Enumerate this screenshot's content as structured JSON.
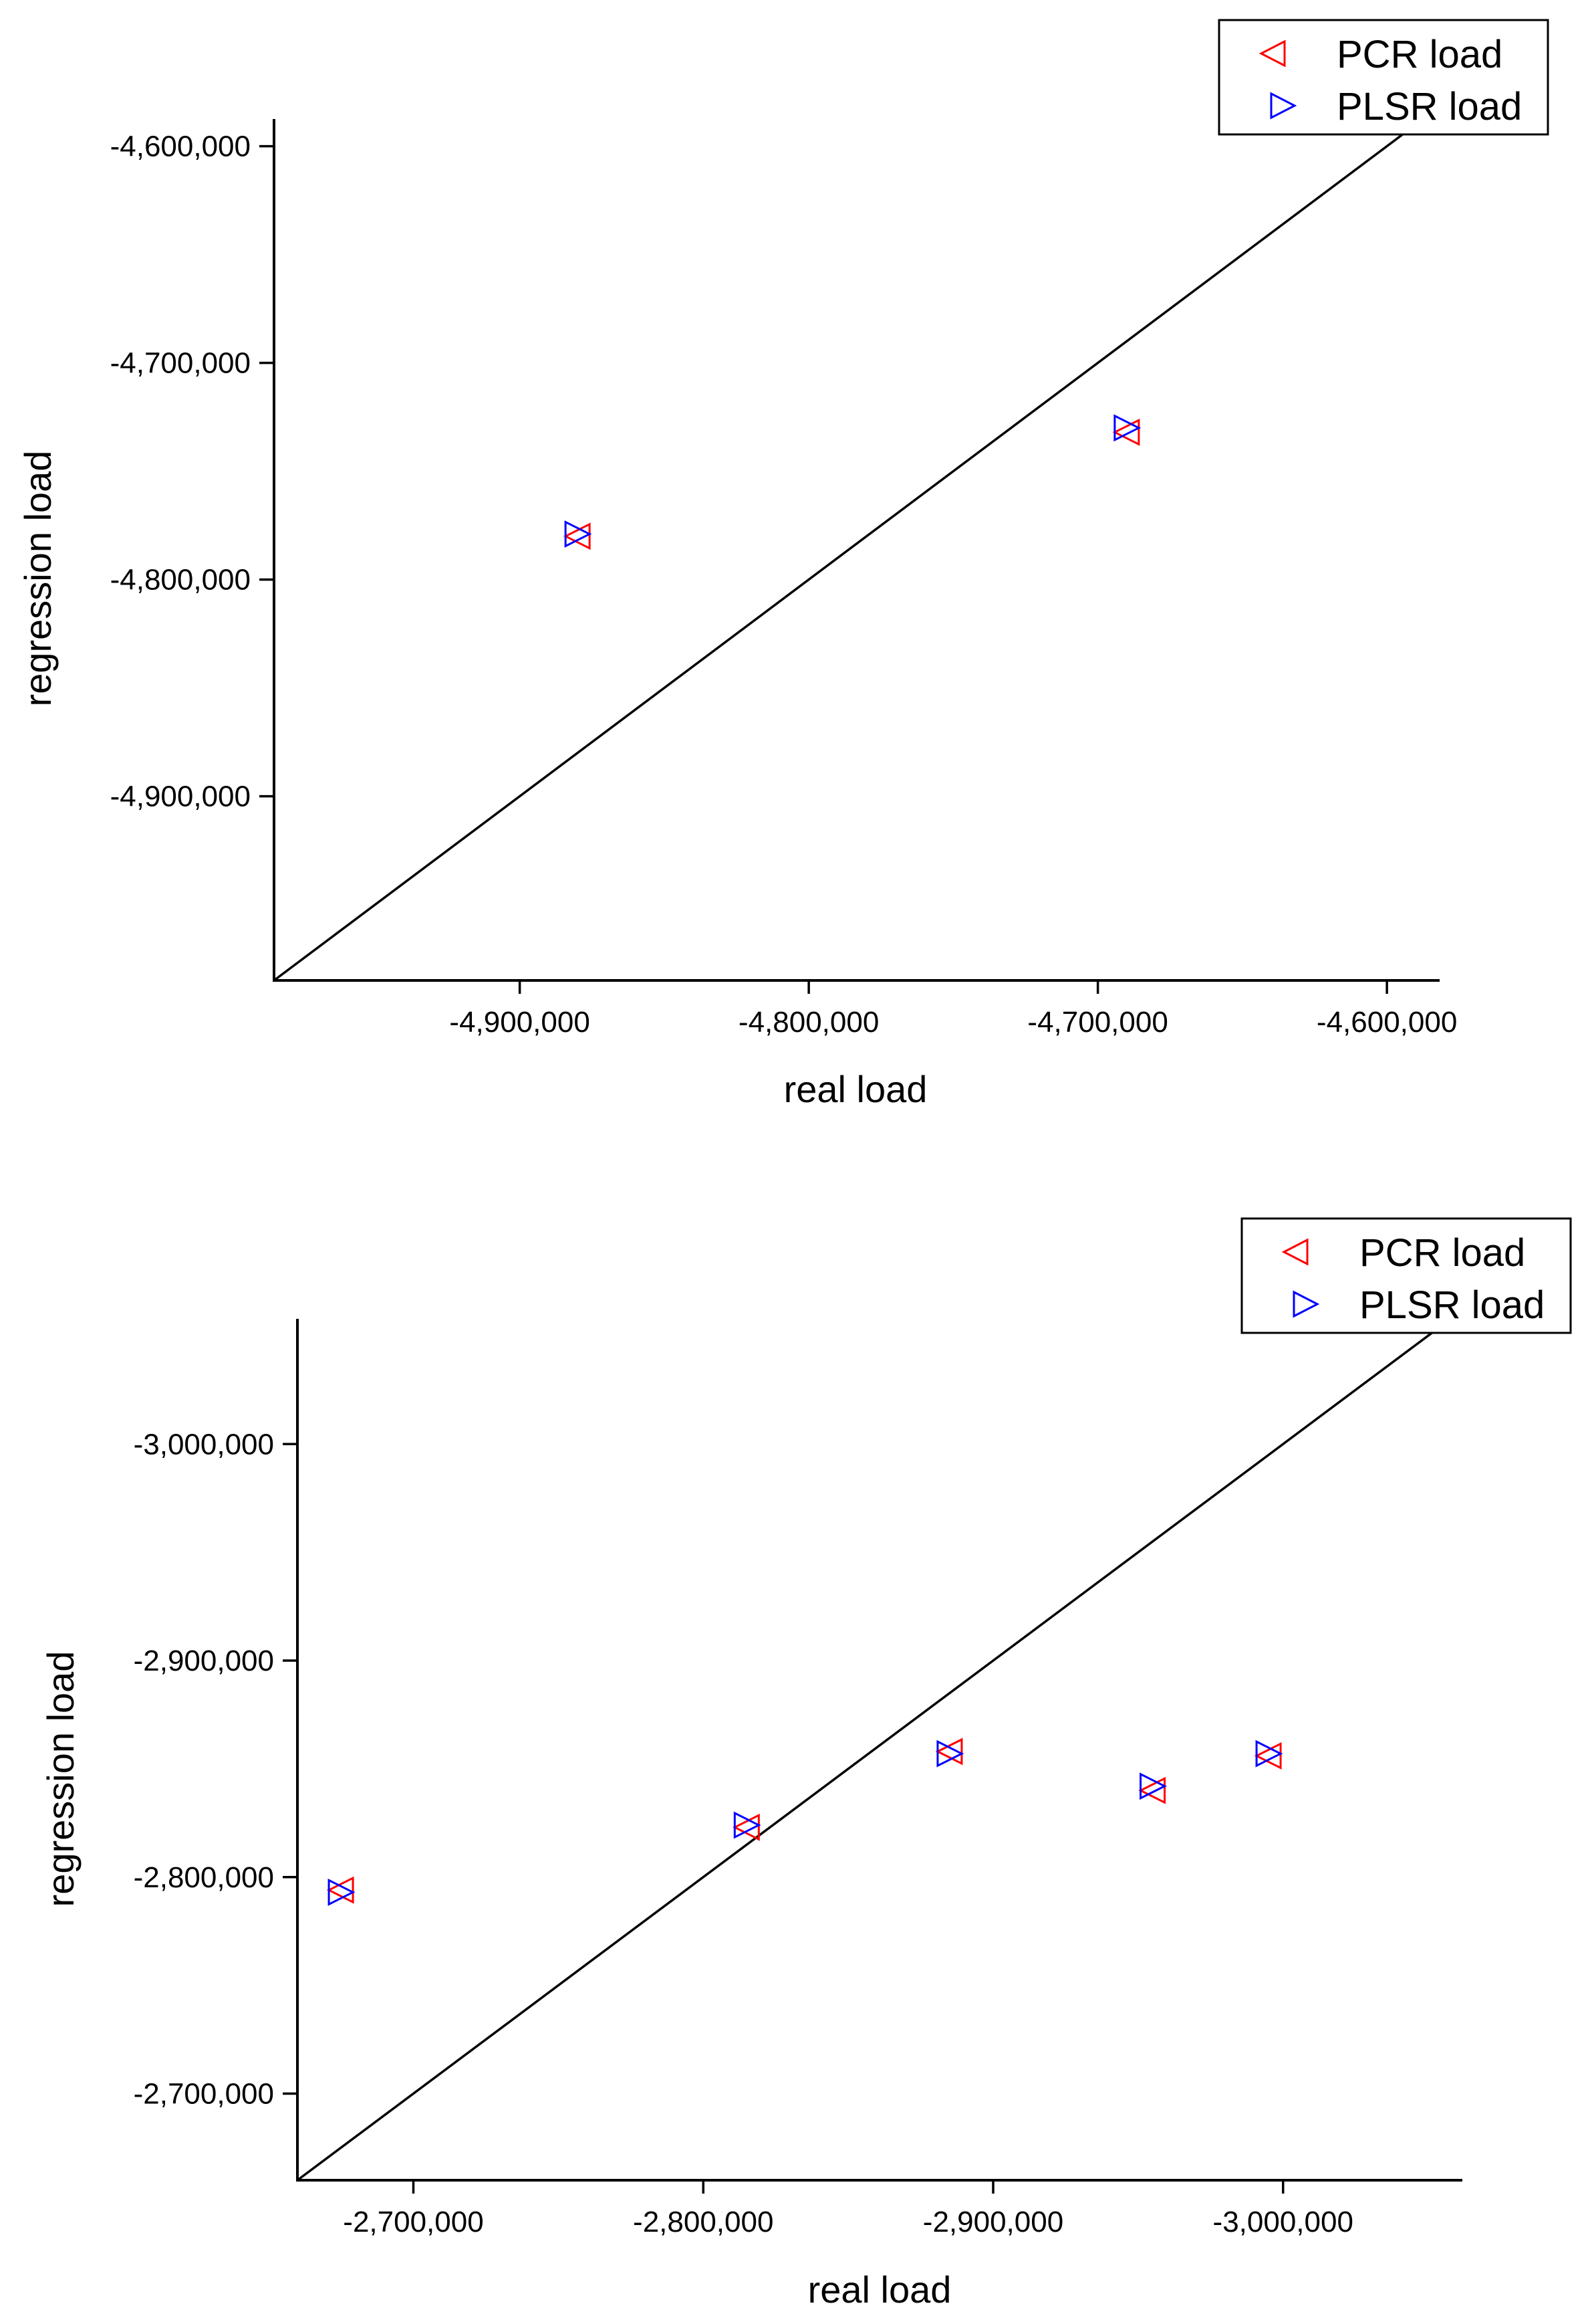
{
  "chart_data": [
    {
      "type": "scatter",
      "title": "",
      "xlabel": "real load",
      "ylabel": "regression load",
      "x_ticks": [
        -4900000,
        -4800000,
        -4700000,
        -4600000
      ],
      "x_tick_labels": [
        "-4,900,000",
        "-4,800,000",
        "-4,700,000",
        "-4,600,000"
      ],
      "y_ticks": [
        -4600000,
        -4700000,
        -4800000,
        -4900000
      ],
      "y_tick_labels": [
        "-4,600,000",
        "-4,700,000",
        "-4,800,000",
        "-4,900,000"
      ],
      "xlim": [
        -4985000,
        -4585000
      ],
      "ylim": [
        -4985000,
        -4585000
      ],
      "x_increasing": "right",
      "y_increasing": "up",
      "reference_line": "y = x",
      "legend_position": "top-right",
      "series": [
        {
          "name": "PCR load",
          "marker": "triangle-left",
          "color": "#ff0000",
          "x": [
            -4880000,
            -4690000
          ],
          "y": [
            -4780000,
            -4732000
          ]
        },
        {
          "name": "PLSR load",
          "marker": "triangle-right",
          "color": "#0000ff",
          "x": [
            -4880000,
            -4690000
          ],
          "y": [
            -4779000,
            -4730000
          ]
        }
      ]
    },
    {
      "type": "scatter",
      "title": "",
      "xlabel": "real load",
      "ylabel": "regression load",
      "x_ticks": [
        -2700000,
        -2800000,
        -2900000,
        -3000000
      ],
      "x_tick_labels": [
        "-2,700,000",
        "-2,800,000",
        "-2,900,000",
        "-3,000,000"
      ],
      "y_ticks": [
        -3000000,
        -2900000,
        -2800000,
        -2700000
      ],
      "y_tick_labels": [
        "-3,000,000",
        "-2,900,000",
        "-2,800,000",
        "-2,700,000"
      ],
      "xlim": [
        -2660000,
        -3060000
      ],
      "ylim": [
        -2660000,
        -3060000
      ],
      "x_increasing": "left",
      "y_increasing": "down",
      "reference_line": "y = x",
      "legend_position": "top-right",
      "series": [
        {
          "name": "PCR load",
          "marker": "triangle-left",
          "color": "#ff0000",
          "x": [
            -2675000,
            -2815000,
            -2885000,
            -2955000,
            -2995000
          ],
          "y": [
            -2794000,
            -2823000,
            -2858000,
            -2840000,
            -2856000
          ]
        },
        {
          "name": "PLSR load",
          "marker": "triangle-right",
          "color": "#0000ff",
          "x": [
            -2675000,
            -2815000,
            -2885000,
            -2955000,
            -2995000
          ],
          "y": [
            -2793000,
            -2824000,
            -2857000,
            -2842000,
            -2857000
          ]
        }
      ]
    }
  ]
}
